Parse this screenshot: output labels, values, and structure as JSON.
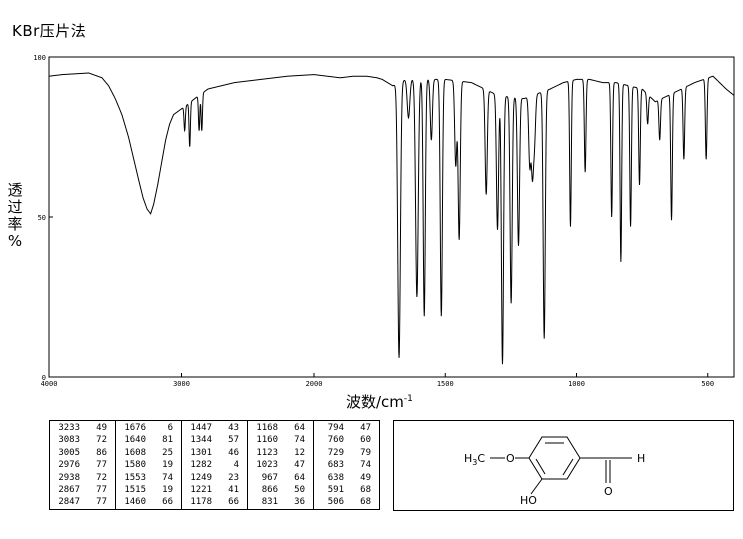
{
  "header": {
    "title": "KBr压片法"
  },
  "chart_data": {
    "type": "line",
    "xlabel": "波数/cm",
    "xlabel_sup": "-1",
    "ylabel": "透\n过\n率\n%",
    "xlim": [
      4000,
      400
    ],
    "ylim": [
      0,
      100
    ],
    "x_ticks": [
      4000,
      3000,
      2000,
      1500,
      1000,
      500
    ],
    "y_ticks": [
      0,
      50,
      100
    ],
    "x_tick_labels": [
      "4000",
      "3000",
      "2000",
      "1500",
      "1000",
      "500"
    ],
    "y_tick_labels": [
      "0",
      "50",
      "100"
    ],
    "baseline": [
      [
        4000,
        94
      ],
      [
        3900,
        94.5
      ],
      [
        3700,
        95
      ],
      [
        3600,
        93.5
      ],
      [
        3550,
        91
      ],
      [
        3500,
        87
      ],
      [
        3450,
        82
      ],
      [
        3400,
        75
      ],
      [
        3360,
        68
      ],
      [
        3320,
        61
      ],
      [
        3290,
        56
      ],
      [
        3260,
        52.5
      ],
      [
        3233,
        51
      ],
      [
        3210,
        54
      ],
      [
        3180,
        60
      ],
      [
        3150,
        67
      ],
      [
        3120,
        74
      ],
      [
        3090,
        79
      ],
      [
        3060,
        82
      ],
      [
        2960,
        85
      ],
      [
        2900,
        87
      ],
      [
        2800,
        90
      ],
      [
        2600,
        92
      ],
      [
        2400,
        93
      ],
      [
        2200,
        94
      ],
      [
        2000,
        94.5
      ],
      [
        1900,
        93.5
      ],
      [
        1850,
        94
      ],
      [
        1800,
        94
      ],
      [
        1760,
        93.5
      ],
      [
        1740,
        93
      ],
      [
        1720,
        92
      ],
      [
        1700,
        91
      ]
    ],
    "peaks": [
      {
        "x": 3233,
        "t": 49
      },
      {
        "x": 3083,
        "t": 72
      },
      {
        "x": 3005,
        "t": 86
      },
      {
        "x": 2976,
        "t": 77
      },
      {
        "x": 2938,
        "t": 72
      },
      {
        "x": 2867,
        "t": 77
      },
      {
        "x": 2847,
        "t": 77
      },
      {
        "x": 1676,
        "t": 6
      },
      {
        "x": 1640,
        "t": 81
      },
      {
        "x": 1608,
        "t": 25
      },
      {
        "x": 1580,
        "t": 19
      },
      {
        "x": 1553,
        "t": 74
      },
      {
        "x": 1515,
        "t": 19
      },
      {
        "x": 1460,
        "t": 66
      },
      {
        "x": 1447,
        "t": 43
      },
      {
        "x": 1344,
        "t": 57
      },
      {
        "x": 1301,
        "t": 46
      },
      {
        "x": 1282,
        "t": 4
      },
      {
        "x": 1249,
        "t": 23
      },
      {
        "x": 1221,
        "t": 41
      },
      {
        "x": 1178,
        "t": 66
      },
      {
        "x": 1168,
        "t": 64
      },
      {
        "x": 1160,
        "t": 74
      },
      {
        "x": 1123,
        "t": 12
      },
      {
        "x": 1023,
        "t": 47
      },
      {
        "x": 967,
        "t": 64
      },
      {
        "x": 866,
        "t": 50
      },
      {
        "x": 831,
        "t": 36
      },
      {
        "x": 794,
        "t": 47
      },
      {
        "x": 760,
        "t": 60
      },
      {
        "x": 729,
        "t": 79
      },
      {
        "x": 683,
        "t": 74
      },
      {
        "x": 638,
        "t": 49
      },
      {
        "x": 591,
        "t": 68
      },
      {
        "x": 506,
        "t": 68
      }
    ],
    "peak_table_columns": [
      [
        [
          "3233",
          "49"
        ],
        [
          "3083",
          "72"
        ],
        [
          "3005",
          "86"
        ],
        [
          "2976",
          "77"
        ],
        [
          "2938",
          "72"
        ],
        [
          "2867",
          "77"
        ],
        [
          "2847",
          "77"
        ]
      ],
      [
        [
          "1676",
          "6"
        ],
        [
          "1640",
          "81"
        ],
        [
          "1608",
          "25"
        ],
        [
          "1580",
          "19"
        ],
        [
          "1553",
          "74"
        ],
        [
          "1515",
          "19"
        ],
        [
          "1460",
          "66"
        ]
      ],
      [
        [
          "1447",
          "43"
        ],
        [
          "1344",
          "57"
        ],
        [
          "1301",
          "46"
        ],
        [
          "1282",
          "4"
        ],
        [
          "1249",
          "23"
        ],
        [
          "1221",
          "41"
        ],
        [
          "1178",
          "66"
        ]
      ],
      [
        [
          "1168",
          "64"
        ],
        [
          "1160",
          "74"
        ],
        [
          "1123",
          "12"
        ],
        [
          "1023",
          "47"
        ],
        [
          "967",
          "64"
        ],
        [
          "866",
          "50"
        ],
        [
          "831",
          "36"
        ]
      ],
      [
        [
          "794",
          "47"
        ],
        [
          "760",
          "60"
        ],
        [
          "729",
          "79"
        ],
        [
          "683",
          "74"
        ],
        [
          "638",
          "49"
        ],
        [
          "591",
          "68"
        ],
        [
          "506",
          "68"
        ]
      ]
    ]
  },
  "structure": {
    "methyl_label": "H",
    "methyl_sub": "3",
    "methyl_c": "C",
    "oxygen_label": "O",
    "hydroxyl_label": "HO",
    "aldehyde_h": "H",
    "aldehyde_o": "O"
  },
  "colors": {
    "line": "#000000",
    "background": "#ffffff"
  }
}
